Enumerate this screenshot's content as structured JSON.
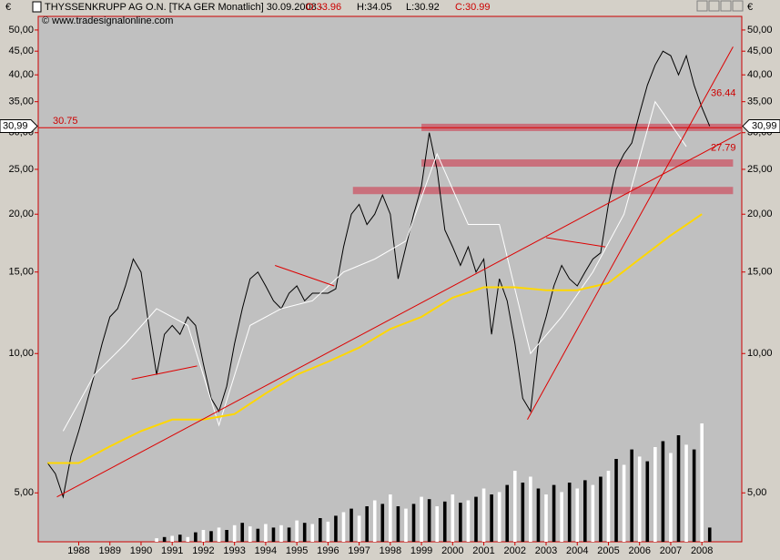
{
  "header": {
    "instrument": "THYSSENKRUPP AG O.N. [TKA GER  Monatlich] 30.09.2008 -",
    "ohlc": [
      "O:33.96",
      "H:34.05",
      "L:30.92",
      "C:30.99"
    ],
    "copyright": "© www.tradesignalonline.com",
    "currency": "€"
  },
  "chart_data": [
    {
      "type": "line",
      "log": true,
      "ylim": [
        3.92,
        53.5
      ],
      "xlim": [
        1987.2,
        2009.78
      ],
      "yticks": [
        {
          "value": 5,
          "label": "5,00"
        },
        {
          "value": 10,
          "label": "10,00"
        },
        {
          "value": 15,
          "label": "15,00"
        },
        {
          "value": 20,
          "label": "20,00"
        },
        {
          "value": 25,
          "label": "25,00"
        },
        {
          "value": 30,
          "label": "30,00"
        },
        {
          "value": 35,
          "label": "35,00"
        },
        {
          "value": 40,
          "label": "40,00"
        },
        {
          "value": 45,
          "label": "45,00"
        },
        {
          "value": 50,
          "label": "50,00"
        }
      ],
      "xticks": [
        {
          "value": 1988.5,
          "label": "1988"
        },
        {
          "value": 1989.5,
          "label": "1989"
        },
        {
          "value": 1990.5,
          "label": "1990"
        },
        {
          "value": 1991.5,
          "label": "1991"
        },
        {
          "value": 1992.5,
          "label": "1992"
        },
        {
          "value": 1993.5,
          "label": "1993"
        },
        {
          "value": 1994.5,
          "label": "1994"
        },
        {
          "value": 1995.5,
          "label": "1995"
        },
        {
          "value": 1996.5,
          "label": "1996"
        },
        {
          "value": 1997.5,
          "label": "1997"
        },
        {
          "value": 1998.5,
          "label": "1998"
        },
        {
          "value": 1999.5,
          "label": "1999"
        },
        {
          "value": 2000.5,
          "label": "2000"
        },
        {
          "value": 2001.5,
          "label": "2001"
        },
        {
          "value": 2002.5,
          "label": "2002"
        },
        {
          "value": 2003.5,
          "label": "2003"
        },
        {
          "value": 2004.5,
          "label": "2004"
        },
        {
          "value": 2005.5,
          "label": "2005"
        },
        {
          "value": 2006.5,
          "label": "2006"
        },
        {
          "value": 2007.5,
          "label": "2007"
        },
        {
          "value": 2008.5,
          "label": "2008"
        }
      ],
      "series": [
        {
          "color": "#000000",
          "x": [
            1987.5,
            1987.75,
            1988,
            1988.25,
            1988.5,
            1988.75,
            1989,
            1989.25,
            1989.5,
            1989.75,
            1990,
            1990.25,
            1990.5,
            1990.75,
            1991,
            1991.25,
            1991.5,
            1991.75,
            1992,
            1992.25,
            1992.5,
            1992.75,
            1993,
            1993.25,
            1993.5,
            1993.75,
            1994,
            1994.25,
            1994.5,
            1994.75,
            1995,
            1995.25,
            1995.5,
            1995.75,
            1996,
            1996.25,
            1996.5,
            1996.75,
            1997,
            1997.25,
            1997.5,
            1997.75,
            1998,
            1998.25,
            1998.5,
            1998.75,
            1999,
            1999.25,
            1999.5,
            1999.75,
            2000,
            2000.25,
            2000.5,
            2000.75,
            2001,
            2001.25,
            2001.5,
            2001.75,
            2002,
            2002.25,
            2002.5,
            2002.75,
            2003,
            2003.25,
            2003.5,
            2003.75,
            2004,
            2004.25,
            2004.5,
            2004.75,
            2005,
            2005.25,
            2005.5,
            2005.75,
            2006,
            2006.25,
            2006.5,
            2006.75,
            2007,
            2007.25,
            2007.5,
            2007.75,
            2008,
            2008.25,
            2008.5,
            2008.75
          ],
          "values": [
            5.8,
            5.5,
            4.9,
            6.0,
            6.8,
            7.8,
            9.0,
            10.5,
            12.0,
            12.5,
            14.0,
            16.0,
            15.0,
            11.5,
            9.0,
            11.0,
            11.5,
            11.0,
            12.0,
            11.5,
            9.5,
            8.0,
            7.5,
            8.5,
            10.5,
            12.5,
            14.5,
            15.0,
            14.0,
            13.0,
            12.5,
            13.5,
            14.0,
            13.0,
            13.5,
            13.5,
            13.5,
            13.8,
            17.0,
            20.0,
            21.0,
            19.0,
            20.0,
            22.0,
            20.0,
            14.5,
            17.0,
            20.0,
            23.0,
            30.0,
            25.0,
            18.5,
            17.0,
            15.5,
            17.0,
            15.0,
            16.0,
            11.0,
            14.5,
            13.0,
            10.5,
            8.0,
            7.5,
            10.5,
            12.0,
            14.0,
            15.5,
            14.5,
            14.0,
            15.0,
            16.0,
            16.5,
            21.0,
            25.0,
            27.0,
            28.5,
            33.0,
            38.0,
            42.0,
            45.0,
            44.0,
            40.0,
            44.0,
            38.0,
            34.0,
            30.99
          ]
        },
        {
          "color": "#ffffff",
          "x": [
            1988,
            1989,
            1990,
            1991,
            1992,
            1993,
            1994,
            1995,
            1996,
            1997,
            1998,
            1999,
            2000,
            2001,
            2002,
            2003,
            2004,
            2005,
            2006,
            2007,
            2008
          ],
          "values": [
            6.8,
            9.0,
            10.5,
            12.5,
            11.5,
            7.0,
            11.5,
            12.5,
            13.0,
            15.0,
            16.0,
            17.5,
            27.0,
            19.0,
            19.0,
            10.0,
            12.0,
            15.0,
            20.0,
            35.0,
            28.0
          ]
        },
        {
          "color": "#ffd700",
          "x": [
            1987.5,
            1988.5,
            1989.5,
            1990.5,
            1991.5,
            1992.5,
            1993.5,
            1994.5,
            1995.5,
            1996.5,
            1997.5,
            1998.5,
            1999.5,
            2000.5,
            2001.5,
            2002.5,
            2003.5,
            2004.5,
            2005.5,
            2006.5,
            2007.5,
            2008.5
          ],
          "values": [
            5.8,
            5.8,
            6.3,
            6.8,
            7.2,
            7.2,
            7.4,
            8.2,
            9.0,
            9.6,
            10.3,
            11.3,
            12.0,
            13.2,
            13.9,
            13.9,
            13.7,
            13.7,
            14.2,
            16.0,
            18.0,
            20.0
          ]
        }
      ],
      "trendlines": [
        {
          "x": [
            1987.8,
            2009.75
          ],
          "y": [
            4.9,
            30.0
          ]
        },
        {
          "x": [
            2002.9,
            2009.5
          ],
          "y": [
            7.2,
            46.0
          ]
        },
        {
          "x": [
            1990.2,
            1992.3
          ],
          "y": [
            8.8,
            9.4
          ]
        },
        {
          "x": [
            1994.8,
            1996.7
          ],
          "y": [
            15.5,
            14.0
          ]
        },
        {
          "x": [
            2003.5,
            2005.4
          ],
          "y": [
            17.8,
            17.0
          ]
        }
      ],
      "bands": [
        {
          "value": 30.8,
          "from": 1999.5,
          "to": 2009.78
        },
        {
          "value": 25.8,
          "from": 1999.5,
          "to": 2009.5
        },
        {
          "value": 22.5,
          "from": 1997.3,
          "to": 2009.5
        }
      ],
      "hline": 30.75,
      "price_labels": [
        36.44,
        27.79
      ],
      "last": {
        "value": 30.99,
        "label": "30,99"
      }
    },
    {
      "type": "bar",
      "ylim": [
        0,
        100
      ],
      "color": "#000000",
      "x": [
        1987.5,
        1987.75,
        1988,
        1988.25,
        1988.5,
        1988.75,
        1989,
        1989.25,
        1989.5,
        1989.75,
        1990,
        1990.25,
        1990.5,
        1990.75,
        1991,
        1991.25,
        1991.5,
        1991.75,
        1992,
        1992.25,
        1992.5,
        1992.75,
        1993,
        1993.25,
        1993.5,
        1993.75,
        1994,
        1994.25,
        1994.5,
        1994.75,
        1995,
        1995.25,
        1995.5,
        1995.75,
        1996,
        1996.25,
        1996.5,
        1996.75,
        1997,
        1997.25,
        1997.5,
        1997.75,
        1998,
        1998.25,
        1998.5,
        1998.75,
        1999,
        1999.25,
        1999.5,
        1999.75,
        2000,
        2000.25,
        2000.5,
        2000.75,
        2001,
        2001.25,
        2001.5,
        2001.75,
        2002,
        2002.25,
        2002.5,
        2002.75,
        2003,
        2003.25,
        2003.5,
        2003.75,
        2004,
        2004.25,
        2004.5,
        2004.75,
        2005,
        2005.25,
        2005.5,
        2005.75,
        2006,
        2006.25,
        2006.5,
        2006.75,
        2007,
        2007.25,
        2007.5,
        2007.75,
        2008,
        2008.25,
        2008.5,
        2008.75
      ],
      "values": [
        0,
        0,
        0,
        0,
        0,
        0,
        0,
        0,
        0,
        0,
        0,
        0,
        0,
        0,
        3,
        4,
        5,
        6,
        4,
        8,
        10,
        9,
        12,
        10,
        14,
        16,
        13,
        11,
        15,
        12,
        14,
        12,
        18,
        16,
        15,
        20,
        17,
        22,
        25,
        28,
        22,
        30,
        35,
        32,
        40,
        30,
        28,
        32,
        38,
        36,
        30,
        34,
        40,
        33,
        35,
        38,
        45,
        40,
        42,
        48,
        60,
        50,
        55,
        45,
        40,
        48,
        42,
        50,
        45,
        52,
        48,
        55,
        60,
        70,
        65,
        78,
        72,
        68,
        80,
        85,
        75,
        90,
        82,
        78,
        100,
        12
      ]
    }
  ]
}
